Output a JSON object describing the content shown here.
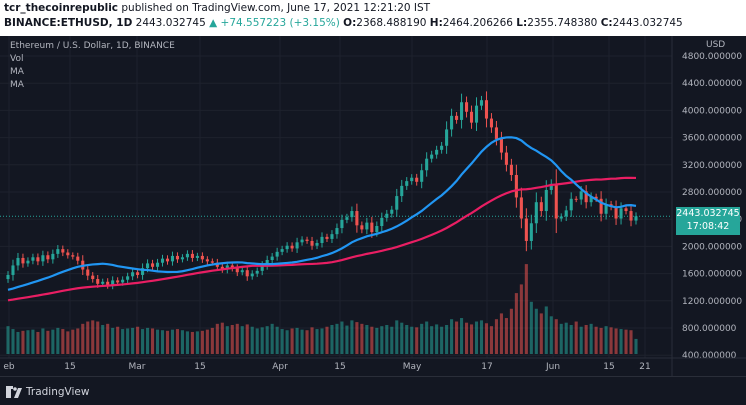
{
  "header": {
    "author": "tcr_thecoinrepublic",
    "published_text": "published on TradingView.com, June 17, 2021 12:21:20 IST",
    "symbol": "BINANCE:ETHUSD, 1D",
    "last": "2443.032745",
    "change": "▲ +74.557223 (+3.15%)",
    "open_label": "O:",
    "open": "2368.488190",
    "high_label": "H:",
    "high": "2464.206266",
    "low_label": "L:",
    "low": "2355.748380",
    "close_label": "C:",
    "close": "2443.032745"
  },
  "legend": {
    "title": "Ethereum / U.S. Dollar, 1D, BINANCE",
    "vol": "Vol",
    "ma1": "MA",
    "ma2": "MA"
  },
  "price_axis": {
    "unit": "USD",
    "ticks": [
      "4800.000000",
      "4400.000000",
      "4000.000000",
      "3600.000000",
      "3200.000000",
      "2800.000000",
      "2400.000000",
      "2000.000000",
      "1600.000000",
      "1200.000000",
      "800.000000",
      "400.000000"
    ]
  },
  "current_price": {
    "value": "2443.032745",
    "countdown": "17:08:42"
  },
  "time_axis": {
    "ticks": [
      "eb",
      "15",
      "Mar",
      "15",
      "Apr",
      "15",
      "May",
      "17",
      "Jun",
      "15",
      "21"
    ]
  },
  "footer": {
    "brand": "TradingView"
  },
  "colors": {
    "up": "#26a69a",
    "down": "#ef5350",
    "ma_fast": "#2196f3",
    "ma_slow": "#e91e63",
    "background": "#131722"
  },
  "chart_data": {
    "type": "candlestick",
    "ylim": [
      400,
      4800
    ],
    "closes": [
      1580,
      1720,
      1830,
      1750,
      1790,
      1840,
      1780,
      1870,
      1810,
      1890,
      1960,
      1910,
      1870,
      1850,
      1790,
      1660,
      1570,
      1520,
      1450,
      1480,
      1430,
      1500,
      1470,
      1510,
      1560,
      1620,
      1580,
      1680,
      1750,
      1700,
      1760,
      1820,
      1780,
      1860,
      1810,
      1840,
      1890,
      1830,
      1860,
      1810,
      1780,
      1760,
      1700,
      1660,
      1720,
      1680,
      1620,
      1650,
      1560,
      1600,
      1640,
      1720,
      1800,
      1850,
      1920,
      1960,
      2010,
      1970,
      2060,
      2100,
      2080,
      2010,
      2050,
      2140,
      2110,
      2180,
      2270,
      2390,
      2430,
      2520,
      2310,
      2250,
      2350,
      2210,
      2300,
      2420,
      2480,
      2540,
      2740,
      2890,
      2960,
      3010,
      2950,
      3120,
      3290,
      3350,
      3420,
      3480,
      3720,
      3920,
      3860,
      4120,
      3980,
      3820,
      4070,
      4150,
      3880,
      3750,
      3580,
      3380,
      3200,
      3050,
      2720,
      2410,
      2080,
      2340,
      2650,
      2520,
      2830,
      2920,
      2410,
      2440,
      2530,
      2700,
      2690,
      2810,
      2650,
      2730,
      2700,
      2480,
      2620,
      2580,
      2410,
      2560,
      2520,
      2380,
      2443
    ],
    "volumes": [
      480,
      430,
      380,
      400,
      410,
      420,
      380,
      440,
      400,
      420,
      450,
      430,
      390,
      420,
      440,
      520,
      560,
      580,
      560,
      500,
      520,
      450,
      470,
      430,
      440,
      450,
      470,
      430,
      450,
      440,
      420,
      410,
      400,
      420,
      430,
      410,
      390,
      380,
      390,
      400,
      420,
      450,
      520,
      540,
      480,
      500,
      520,
      480,
      510,
      470,
      440,
      460,
      480,
      520,
      470,
      430,
      410,
      440,
      450,
      420,
      410,
      460,
      430,
      440,
      470,
      500,
      520,
      560,
      490,
      580,
      550,
      520,
      500,
      470,
      450,
      480,
      500,
      470,
      580,
      540,
      500,
      470,
      460,
      520,
      560,
      480,
      510,
      470,
      500,
      600,
      560,
      620,
      540,
      510,
      560,
      580,
      530,
      480,
      600,
      700,
      620,
      780,
      1050,
      1200,
      1550,
      900,
      780,
      700,
      820,
      650,
      600,
      520,
      540,
      500,
      560,
      470,
      500,
      520,
      470,
      450,
      480,
      460,
      440,
      430,
      420,
      410,
      260
    ],
    "ma_fast": {
      "start": 100,
      "end": 2900
    },
    "ma_slow": {
      "start": 720,
      "end": 2430
    }
  }
}
